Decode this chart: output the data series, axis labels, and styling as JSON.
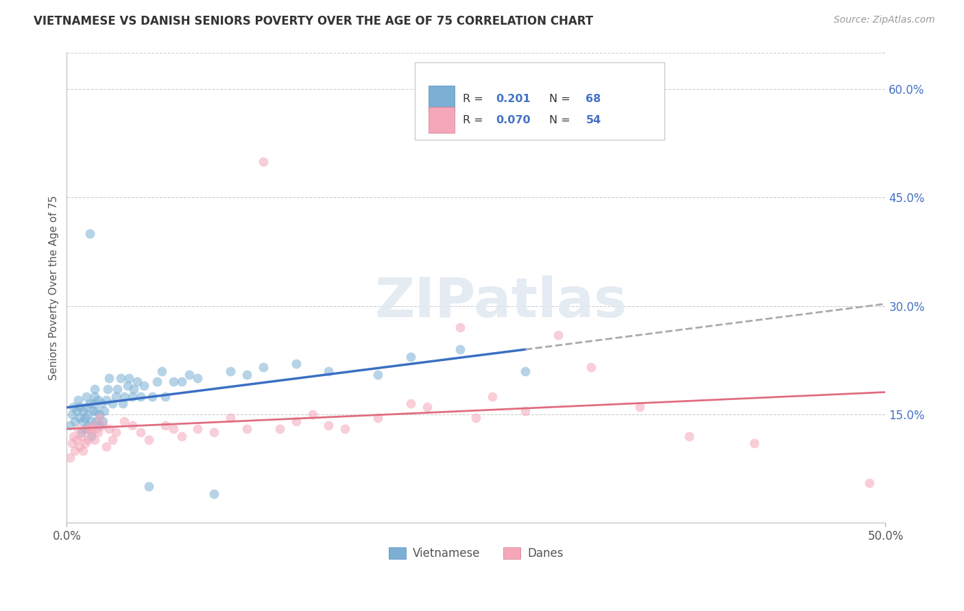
{
  "title": "VIETNAMESE VS DANISH SENIORS POVERTY OVER THE AGE OF 75 CORRELATION CHART",
  "source": "Source: ZipAtlas.com",
  "ylabel": "Seniors Poverty Over the Age of 75",
  "xlim": [
    0.0,
    0.5
  ],
  "ylim": [
    0.0,
    0.65
  ],
  "xticks": [
    0.0,
    0.5
  ],
  "xtick_labels": [
    "0.0%",
    "50.0%"
  ],
  "yticks_right": [
    0.15,
    0.3,
    0.45,
    0.6
  ],
  "ytick_labels_right": [
    "15.0%",
    "30.0%",
    "45.0%",
    "60.0%"
  ],
  "watermark": "ZIPatlas",
  "viet_color": "#7bafd4",
  "dane_color": "#f4a7b9",
  "viet_line_color": "#3a6fc4",
  "dane_line_color": "#e06c80",
  "dash_line_color": "#aaaaaa",
  "background_color": "#ffffff",
  "grid_color": "#cccccc",
  "viet_x": [
    0.002,
    0.003,
    0.004,
    0.005,
    0.006,
    0.007,
    0.008,
    0.008,
    0.009,
    0.01,
    0.01,
    0.011,
    0.011,
    0.012,
    0.012,
    0.013,
    0.013,
    0.014,
    0.014,
    0.015,
    0.015,
    0.016,
    0.016,
    0.017,
    0.017,
    0.018,
    0.018,
    0.019,
    0.02,
    0.02,
    0.021,
    0.022,
    0.023,
    0.024,
    0.025,
    0.026,
    0.028,
    0.03,
    0.031,
    0.033,
    0.034,
    0.035,
    0.037,
    0.038,
    0.04,
    0.041,
    0.043,
    0.045,
    0.047,
    0.05,
    0.052,
    0.055,
    0.058,
    0.06,
    0.065,
    0.07,
    0.075,
    0.08,
    0.09,
    0.1,
    0.11,
    0.12,
    0.14,
    0.16,
    0.19,
    0.21,
    0.24,
    0.28
  ],
  "viet_y": [
    0.135,
    0.15,
    0.16,
    0.14,
    0.155,
    0.17,
    0.145,
    0.16,
    0.125,
    0.14,
    0.155,
    0.13,
    0.145,
    0.16,
    0.175,
    0.135,
    0.15,
    0.165,
    0.4,
    0.12,
    0.14,
    0.155,
    0.165,
    0.175,
    0.185,
    0.14,
    0.155,
    0.17,
    0.135,
    0.15,
    0.165,
    0.14,
    0.155,
    0.17,
    0.185,
    0.2,
    0.165,
    0.175,
    0.185,
    0.2,
    0.165,
    0.175,
    0.19,
    0.2,
    0.175,
    0.185,
    0.195,
    0.175,
    0.19,
    0.05,
    0.175,
    0.195,
    0.21,
    0.175,
    0.195,
    0.195,
    0.205,
    0.2,
    0.04,
    0.21,
    0.205,
    0.215,
    0.22,
    0.21,
    0.205,
    0.23,
    0.24,
    0.21
  ],
  "dane_x": [
    0.002,
    0.003,
    0.004,
    0.005,
    0.006,
    0.007,
    0.008,
    0.009,
    0.01,
    0.011,
    0.012,
    0.013,
    0.014,
    0.015,
    0.016,
    0.017,
    0.018,
    0.019,
    0.02,
    0.022,
    0.024,
    0.026,
    0.028,
    0.03,
    0.035,
    0.04,
    0.045,
    0.05,
    0.06,
    0.065,
    0.07,
    0.08,
    0.09,
    0.1,
    0.11,
    0.13,
    0.14,
    0.15,
    0.16,
    0.17,
    0.19,
    0.21,
    0.22,
    0.24,
    0.25,
    0.26,
    0.28,
    0.3,
    0.32,
    0.35,
    0.38,
    0.42,
    0.49,
    0.12
  ],
  "dane_y": [
    0.09,
    0.11,
    0.12,
    0.1,
    0.115,
    0.13,
    0.105,
    0.12,
    0.1,
    0.11,
    0.13,
    0.115,
    0.13,
    0.125,
    0.135,
    0.115,
    0.13,
    0.125,
    0.145,
    0.135,
    0.105,
    0.13,
    0.115,
    0.125,
    0.14,
    0.135,
    0.125,
    0.115,
    0.135,
    0.13,
    0.12,
    0.13,
    0.125,
    0.145,
    0.13,
    0.13,
    0.14,
    0.15,
    0.135,
    0.13,
    0.145,
    0.165,
    0.16,
    0.27,
    0.145,
    0.175,
    0.155,
    0.26,
    0.215,
    0.16,
    0.12,
    0.11,
    0.055,
    0.5
  ]
}
